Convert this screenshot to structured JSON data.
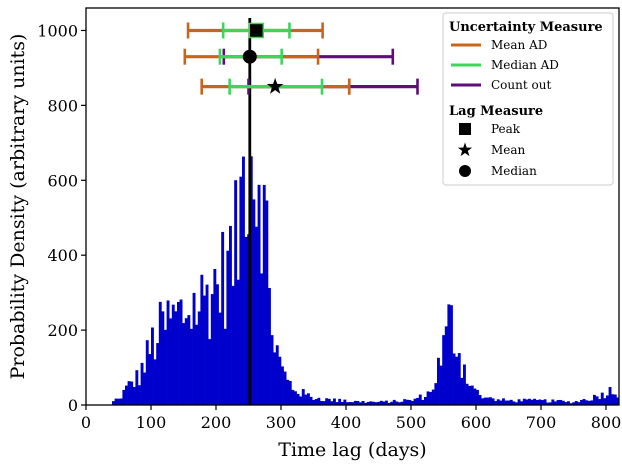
{
  "chart_data": {
    "type": "bar",
    "xlabel": "Time lag (days)",
    "ylabel": "Probability Density (arbitrary units)",
    "xlim": [
      0,
      820
    ],
    "ylim": [
      0,
      1060
    ],
    "xticks": [
      0,
      100,
      200,
      300,
      400,
      500,
      600,
      700,
      800
    ],
    "yticks": [
      0,
      200,
      400,
      600,
      800,
      1000
    ],
    "grid": false,
    "histogram_color": "#0000cc",
    "bin_width": 4,
    "histogram_anchors": [
      [
        40,
        8
      ],
      [
        50,
        15
      ],
      [
        60,
        40
      ],
      [
        70,
        60
      ],
      [
        80,
        75
      ],
      [
        90,
        110
      ],
      [
        100,
        160
      ],
      [
        110,
        190
      ],
      [
        120,
        215
      ],
      [
        130,
        230
      ],
      [
        140,
        240
      ],
      [
        150,
        250
      ],
      [
        160,
        265
      ],
      [
        170,
        270
      ],
      [
        180,
        285
      ],
      [
        190,
        310
      ],
      [
        200,
        330
      ],
      [
        210,
        350
      ],
      [
        220,
        380
      ],
      [
        228,
        410
      ],
      [
        234,
        470
      ],
      [
        240,
        580
      ],
      [
        244,
        700
      ],
      [
        248,
        740
      ],
      [
        252,
        720
      ],
      [
        256,
        700
      ],
      [
        260,
        650
      ],
      [
        264,
        620
      ],
      [
        268,
        690
      ],
      [
        272,
        570
      ],
      [
        276,
        450
      ],
      [
        280,
        330
      ],
      [
        286,
        230
      ],
      [
        292,
        160
      ],
      [
        300,
        100
      ],
      [
        310,
        65
      ],
      [
        320,
        45
      ],
      [
        335,
        30
      ],
      [
        350,
        20
      ],
      [
        370,
        15
      ],
      [
        400,
        10
      ],
      [
        450,
        8
      ],
      [
        500,
        12
      ],
      [
        520,
        25
      ],
      [
        530,
        35
      ],
      [
        540,
        90
      ],
      [
        548,
        140
      ],
      [
        555,
        190
      ],
      [
        560,
        230
      ],
      [
        565,
        210
      ],
      [
        570,
        170
      ],
      [
        578,
        120
      ],
      [
        586,
        80
      ],
      [
        595,
        50
      ],
      [
        605,
        25
      ],
      [
        620,
        15
      ],
      [
        650,
        12
      ],
      [
        700,
        12
      ],
      [
        750,
        8
      ],
      [
        780,
        20
      ],
      [
        795,
        30
      ],
      [
        808,
        40
      ],
      [
        820,
        35
      ]
    ],
    "lag_line": {
      "x": 252,
      "color": "#000000"
    },
    "series": [
      {
        "name": "Mean AD",
        "color": "#c8651b",
        "y": 1000,
        "lo": 157,
        "hi": 364,
        "inner": []
      },
      {
        "name": "Median AD",
        "color": "#3ed65a",
        "y": 1000,
        "lo": 211,
        "hi": 313,
        "inner": []
      },
      {
        "name": "Count out",
        "color": "#5e0e7a",
        "y": 930,
        "lo": 212,
        "hi": 472,
        "inner": []
      },
      {
        "name": "Mean AD",
        "color": "#c8651b",
        "y": 930,
        "lo": 152,
        "hi": 357,
        "inner": []
      },
      {
        "name": "Median AD",
        "color": "#3ed65a",
        "y": 930,
        "lo": 206,
        "hi": 301,
        "inner": []
      },
      {
        "name": "Count out",
        "color": "#5e0e7a",
        "y": 850,
        "lo": 250,
        "hi": 510,
        "inner": [
          405
        ]
      },
      {
        "name": "Mean AD",
        "color": "#c8651b",
        "y": 850,
        "lo": 178,
        "hi": 405,
        "inner": []
      },
      {
        "name": "Median AD",
        "color": "#3ed65a",
        "y": 850,
        "lo": 221,
        "hi": 363,
        "inner": []
      }
    ],
    "markers": [
      {
        "name": "Peak",
        "shape": "square",
        "x": 262,
        "y": 1000
      },
      {
        "name": "Median",
        "shape": "circle",
        "x": 252,
        "y": 930
      },
      {
        "name": "Mean",
        "shape": "star",
        "x": 291,
        "y": 850
      }
    ],
    "legend": {
      "position": "top-right",
      "uncertainty_title": "Uncertainty Measure",
      "uncertainty_items": [
        {
          "label": "Mean AD",
          "color": "#c8651b"
        },
        {
          "label": "Median AD",
          "color": "#3ed65a"
        },
        {
          "label": "Count out",
          "color": "#5e0e7a"
        }
      ],
      "lag_title": "Lag Measure",
      "lag_items": [
        {
          "label": "Peak",
          "shape": "square"
        },
        {
          "label": "Mean",
          "shape": "star"
        },
        {
          "label": "Median",
          "shape": "circle"
        }
      ]
    }
  }
}
